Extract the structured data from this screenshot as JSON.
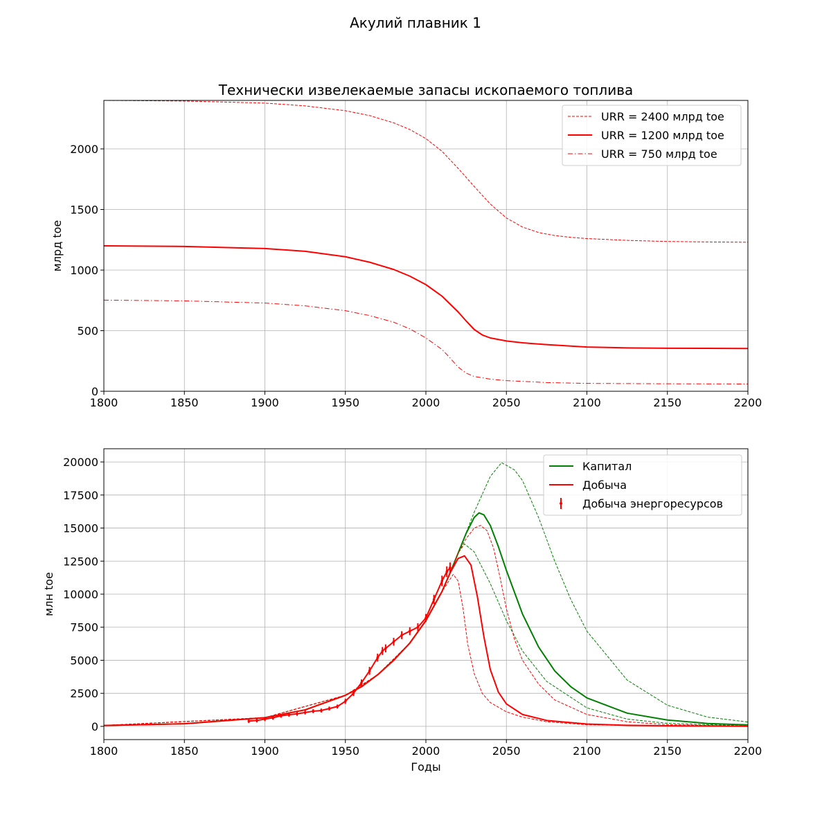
{
  "figure": {
    "suptitle": "Акулий плавник 1"
  },
  "chart_data": [
    {
      "type": "line",
      "title": "Технически извелекаемые запасы ископаемого топлива",
      "xlabel": "",
      "ylabel": "млрд toe",
      "xlim": [
        1800,
        2200
      ],
      "ylim": [
        0,
        2400
      ],
      "xticks": [
        1800,
        1850,
        1900,
        1950,
        2000,
        2050,
        2100,
        2150,
        2200
      ],
      "yticks": [
        0,
        500,
        1000,
        1500,
        2000
      ],
      "grid": true,
      "legend_position": "top-right",
      "series": [
        {
          "name": "URR = 2400 млрд toe",
          "color": "#ff0000",
          "style": "dashed",
          "width": 1,
          "x": [
            1800,
            1850,
            1900,
            1925,
            1950,
            1965,
            1980,
            1990,
            2000,
            2010,
            2020,
            2030,
            2040,
            2050,
            2060,
            2070,
            2080,
            2090,
            2100,
            2125,
            2150,
            2175,
            2200
          ],
          "y": [
            2400,
            2395,
            2378,
            2355,
            2315,
            2275,
            2215,
            2160,
            2085,
            1980,
            1840,
            1690,
            1545,
            1430,
            1355,
            1310,
            1285,
            1270,
            1260,
            1245,
            1236,
            1232,
            1230
          ]
        },
        {
          "name": "URR = 1200 млрд toe",
          "color": "#ff0000",
          "style": "solid",
          "width": 2,
          "x": [
            1800,
            1850,
            1900,
            1925,
            1950,
            1965,
            1980,
            1990,
            2000,
            2010,
            2020,
            2025,
            2030,
            2035,
            2040,
            2050,
            2060,
            2075,
            2100,
            2125,
            2150,
            2175,
            2200
          ],
          "y": [
            1200,
            1195,
            1178,
            1155,
            1110,
            1065,
            1005,
            950,
            880,
            785,
            655,
            580,
            510,
            465,
            440,
            415,
            400,
            385,
            365,
            358,
            355,
            354,
            353
          ]
        },
        {
          "name": "URR = 750 млрд toe",
          "color": "#ff0000",
          "style": "dashdot",
          "width": 1,
          "x": [
            1800,
            1850,
            1900,
            1925,
            1950,
            1965,
            1980,
            1990,
            2000,
            2010,
            2015,
            2020,
            2025,
            2030,
            2040,
            2050,
            2075,
            2100,
            2150,
            2200
          ],
          "y": [
            752,
            746,
            728,
            705,
            665,
            625,
            570,
            515,
            440,
            345,
            275,
            200,
            150,
            122,
            100,
            88,
            72,
            65,
            62,
            60
          ]
        }
      ]
    },
    {
      "type": "line",
      "title": "",
      "xlabel": "Годы",
      "ylabel": "млн toe",
      "xlim": [
        1800,
        2200
      ],
      "ylim": [
        -1000,
        21000
      ],
      "xticks": [
        1800,
        1850,
        1900,
        1950,
        2000,
        2050,
        2100,
        2150,
        2200
      ],
      "yticks": [
        0,
        2500,
        5000,
        7500,
        10000,
        12500,
        15000,
        17500,
        20000
      ],
      "grid": true,
      "legend_position": "top-right",
      "series": [
        {
          "name": "Капитал",
          "color": "#008000",
          "style": "solid",
          "width": 2,
          "x": [
            1800,
            1850,
            1900,
            1925,
            1950,
            1960,
            1970,
            1980,
            1990,
            2000,
            2010,
            2015,
            2020,
            2025,
            2030,
            2033,
            2036,
            2040,
            2045,
            2050,
            2060,
            2070,
            2080,
            2090,
            2100,
            2125,
            2150,
            2175,
            2200
          ],
          "y": [
            70,
            200,
            660,
            1250,
            2350,
            3000,
            3900,
            5000,
            6300,
            8000,
            10200,
            11600,
            13100,
            14600,
            15800,
            16150,
            16000,
            15200,
            13600,
            11800,
            8500,
            6000,
            4200,
            3000,
            2150,
            1000,
            480,
            220,
            110
          ]
        },
        {
          "name": "",
          "color": "#008000",
          "style": "dashed",
          "width": 1,
          "x": [
            1800,
            1900,
            1950,
            1970,
            1990,
            2000,
            2010,
            2020,
            2030,
            2040,
            2047,
            2055,
            2060,
            2070,
            2080,
            2090,
            2100,
            2125,
            2150,
            2175,
            2200
          ],
          "y": [
            70,
            660,
            2350,
            3900,
            6300,
            8000,
            10200,
            13100,
            16200,
            18900,
            19950,
            19400,
            18600,
            15800,
            12500,
            9600,
            7200,
            3500,
            1600,
            700,
            330
          ]
        },
        {
          "name": "",
          "color": "#008000",
          "style": "dashed",
          "width": 1,
          "x": [
            1800,
            1900,
            1950,
            1970,
            1990,
            2000,
            2010,
            2015,
            2020,
            2024,
            2030,
            2040,
            2050,
            2060,
            2075,
            2100,
            2125,
            2150,
            2200
          ],
          "y": [
            70,
            660,
            2350,
            3900,
            6300,
            8000,
            10200,
            11600,
            13100,
            13800,
            13200,
            10800,
            8000,
            5700,
            3400,
            1400,
            550,
            230,
            40
          ]
        },
        {
          "name": "Добыча",
          "color": "#ff0000",
          "style": "solid",
          "width": 2,
          "x": [
            1800,
            1850,
            1900,
            1925,
            1950,
            1960,
            1970,
            1980,
            1990,
            2000,
            2010,
            2015,
            2020,
            2024,
            2028,
            2032,
            2036,
            2040,
            2045,
            2050,
            2060,
            2075,
            2100,
            2125,
            2150,
            2200
          ],
          "y": [
            70,
            200,
            660,
            1250,
            2350,
            3000,
            3900,
            5000,
            6300,
            8000,
            10200,
            11600,
            12700,
            12900,
            12200,
            9800,
            6800,
            4300,
            2600,
            1700,
            900,
            450,
            180,
            80,
            40,
            10
          ]
        },
        {
          "name": "",
          "color": "#ff0000",
          "style": "dashed",
          "width": 1,
          "x": [
            1800,
            1900,
            1950,
            1970,
            1990,
            2000,
            2010,
            2017,
            2020,
            2023,
            2026,
            2030,
            2035,
            2040,
            2050,
            2060,
            2075,
            2100,
            2150,
            2200
          ],
          "y": [
            70,
            660,
            2350,
            3900,
            6300,
            8000,
            10200,
            11500,
            11000,
            9000,
            6200,
            4000,
            2500,
            1800,
            1100,
            700,
            350,
            120,
            20,
            5
          ]
        },
        {
          "name": "",
          "color": "#ff0000",
          "style": "dashed",
          "width": 1,
          "x": [
            1800,
            1900,
            1950,
            1970,
            1990,
            2000,
            2010,
            2015,
            2020,
            2025,
            2030,
            2034,
            2038,
            2042,
            2046,
            2050,
            2055,
            2060,
            2070,
            2080,
            2100,
            2125,
            2150,
            2200
          ],
          "y": [
            70,
            660,
            2350,
            3900,
            6300,
            8000,
            10200,
            11600,
            13100,
            14200,
            15000,
            15200,
            14800,
            13500,
            11300,
            8900,
            6600,
            5000,
            3200,
            2000,
            900,
            350,
            130,
            20
          ]
        },
        {
          "name": "Добыча энергоресурсов",
          "color": "#ff0000",
          "style": "errorbar",
          "width": 1,
          "x": [
            1890,
            1895,
            1900,
            1905,
            1910,
            1915,
            1920,
            1925,
            1930,
            1935,
            1940,
            1945,
            1950,
            1955,
            1960,
            1965,
            1970,
            1973,
            1975,
            1980,
            1985,
            1990,
            1995,
            2000,
            2005,
            2010,
            2013,
            2015
          ],
          "y": [
            400,
            450,
            550,
            650,
            800,
            880,
            950,
            1050,
            1150,
            1200,
            1350,
            1500,
            1900,
            2500,
            3300,
            4200,
            5200,
            5700,
            5900,
            6400,
            6900,
            7200,
            7500,
            8200,
            9600,
            11000,
            11700,
            12000
          ],
          "err": [
            150,
            150,
            150,
            150,
            150,
            150,
            150,
            150,
            150,
            150,
            150,
            150,
            200,
            200,
            250,
            300,
            300,
            300,
            300,
            300,
            300,
            300,
            300,
            300,
            350,
            400,
            400,
            400
          ]
        }
      ]
    }
  ]
}
